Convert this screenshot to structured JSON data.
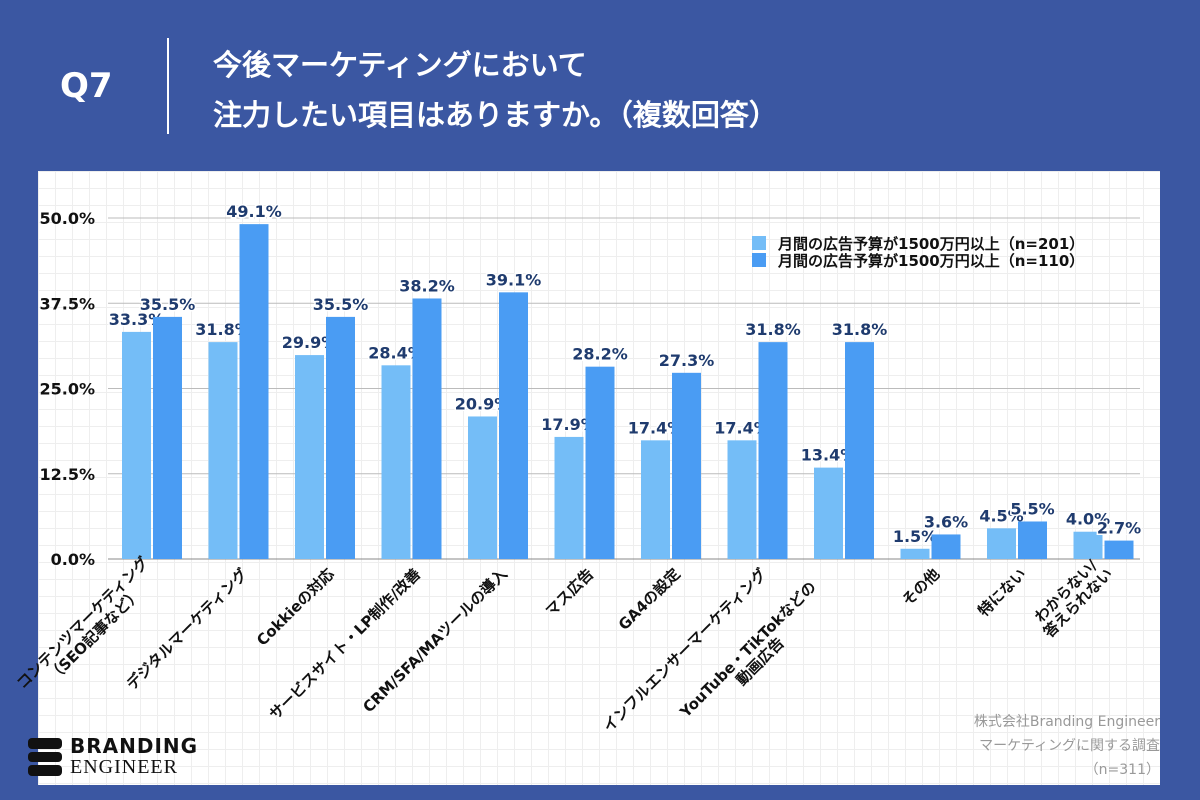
{
  "header": {
    "question": "Q7",
    "title_line1": "今後マーケティングにおいて",
    "title_line2": "注力したい項目はありますか。（複数回答）"
  },
  "chart_data": {
    "type": "bar",
    "ylim": [
      0,
      50
    ],
    "yticks": [
      "0.0%",
      "12.5%",
      "25.0%",
      "37.5%",
      "50.0%"
    ],
    "ytick_values": [
      0,
      12.5,
      25,
      37.5,
      50
    ],
    "grid": true,
    "legend_position": "top-right",
    "categories": [
      [
        "コンテンツマーケティング",
        "（SEO記事など）"
      ],
      [
        "デジタルマーケティング"
      ],
      [
        "Cokkieの対応"
      ],
      [
        "サービスサイト・LP制作/改善"
      ],
      [
        "CRM/SFA/MAツールの導入"
      ],
      [
        "マス広告"
      ],
      [
        "GA4の設定"
      ],
      [
        "インフルエンサーマーケティング"
      ],
      [
        "YouTube・TikTokなどの",
        "動画広告"
      ],
      [
        "その他"
      ],
      [
        "特にない"
      ],
      [
        "わからない/",
        "答えられない"
      ]
    ],
    "series": [
      {
        "name": "月間の広告予算が1500万円以上（n=201）",
        "color": "#74BDF7",
        "values": [
          33.3,
          31.8,
          29.9,
          28.4,
          20.9,
          17.9,
          17.4,
          17.4,
          13.4,
          1.5,
          4.5,
          4.0
        ]
      },
      {
        "name": "月間の広告予算が1500万円以上（n=110）",
        "color": "#4A9CF3",
        "values": [
          35.5,
          49.1,
          35.5,
          38.2,
          39.1,
          28.2,
          27.3,
          31.8,
          31.8,
          3.6,
          5.5,
          2.7
        ]
      }
    ],
    "label_color": "#1F3B6E"
  },
  "logo": {
    "line1": "BRANDING",
    "line2": "ENGINEER"
  },
  "source": {
    "line1": "株式会社Branding Engineer",
    "line2": "マーケティングに関する調査",
    "line3": "（n=311）"
  }
}
